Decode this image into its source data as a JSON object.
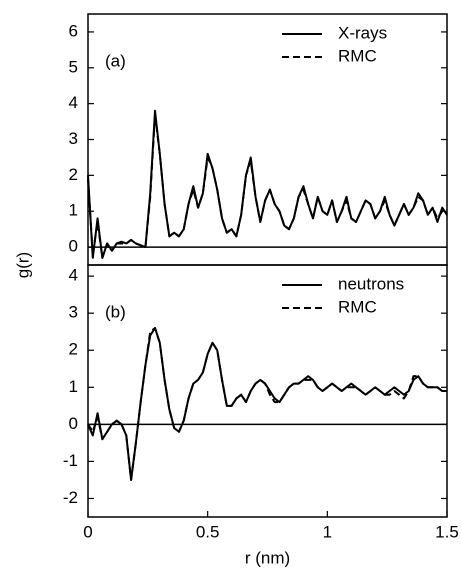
{
  "chart_data": [
    {
      "type": "line",
      "label": "(a)",
      "ylabel": "g(r)",
      "legend": "upper right",
      "xlim": [
        0,
        1.5
      ],
      "ylim": [
        -0.5,
        6.5
      ],
      "yticks": [
        0,
        1,
        2,
        3,
        4,
        5,
        6
      ],
      "zero_line": true,
      "x": [
        0,
        0.02,
        0.04,
        0.06,
        0.08,
        0.1,
        0.12,
        0.14,
        0.16,
        0.18,
        0.2,
        0.22,
        0.24,
        0.26,
        0.28,
        0.3,
        0.32,
        0.34,
        0.36,
        0.38,
        0.4,
        0.42,
        0.44,
        0.46,
        0.48,
        0.5,
        0.52,
        0.54,
        0.56,
        0.58,
        0.6,
        0.62,
        0.64,
        0.66,
        0.68,
        0.7,
        0.72,
        0.74,
        0.76,
        0.78,
        0.8,
        0.82,
        0.84,
        0.86,
        0.88,
        0.9,
        0.92,
        0.94,
        0.96,
        0.98,
        1,
        1.02,
        1.04,
        1.06,
        1.08,
        1.1,
        1.12,
        1.14,
        1.16,
        1.18,
        1.2,
        1.22,
        1.24,
        1.26,
        1.28,
        1.3,
        1.32,
        1.34,
        1.36,
        1.38,
        1.4,
        1.42,
        1.44,
        1.46,
        1.48,
        1.5
      ],
      "series": [
        {
          "name": "X-rays",
          "color": "#000000",
          "linestyle": "solid",
          "values": [
            2.0,
            -0.3,
            0.8,
            -0.3,
            0.1,
            -0.1,
            0.1,
            0.15,
            0.1,
            0.2,
            0.1,
            0.05,
            0.0,
            1.5,
            3.8,
            2.6,
            1.2,
            0.3,
            0.4,
            0.3,
            0.5,
            1.2,
            1.7,
            1.1,
            1.5,
            2.6,
            2.2,
            1.6,
            0.8,
            0.4,
            0.5,
            0.3,
            0.9,
            2.0,
            2.5,
            1.4,
            0.7,
            1.3,
            1.6,
            1.2,
            1.0,
            0.6,
            0.5,
            0.8,
            1.4,
            1.7,
            1.2,
            0.8,
            1.4,
            1.0,
            0.9,
            1.3,
            0.7,
            1.0,
            1.4,
            0.8,
            0.7,
            1.0,
            1.3,
            1.2,
            0.8,
            1.0,
            1.4,
            0.9,
            0.6,
            0.9,
            1.2,
            0.9,
            1.1,
            1.5,
            1.3,
            0.9,
            1.1,
            0.7,
            1.1,
            0.9
          ]
        },
        {
          "name": "RMC",
          "color": "#000000",
          "linestyle": "dashed",
          "values": [
            1.9,
            -0.2,
            0.7,
            -0.3,
            0.1,
            -0.1,
            0.1,
            0.1,
            0.1,
            0.2,
            0.1,
            0.05,
            0.0,
            1.4,
            3.7,
            2.6,
            1.2,
            0.3,
            0.4,
            0.3,
            0.5,
            1.2,
            1.6,
            1.1,
            1.5,
            2.5,
            2.2,
            1.6,
            0.8,
            0.4,
            0.5,
            0.3,
            0.9,
            2.0,
            2.4,
            1.4,
            0.7,
            1.3,
            1.6,
            1.2,
            1.0,
            0.6,
            0.5,
            0.8,
            1.4,
            1.6,
            1.2,
            0.8,
            1.4,
            1.0,
            0.9,
            1.3,
            0.7,
            1.0,
            1.3,
            0.8,
            0.7,
            1.0,
            1.3,
            1.2,
            0.8,
            1.0,
            1.3,
            0.9,
            0.6,
            0.9,
            1.2,
            0.9,
            1.1,
            1.4,
            1.3,
            0.9,
            1.1,
            0.8,
            1.0,
            0.9
          ]
        }
      ]
    },
    {
      "type": "line",
      "label": "(b)",
      "xlabel": "r (nm)",
      "legend": "upper right",
      "xlim": [
        0,
        1.5
      ],
      "xticks": [
        0,
        0.5,
        1,
        1.5
      ],
      "ylim": [
        -2.5,
        4.3
      ],
      "yticks": [
        -2,
        -1,
        0,
        1,
        2,
        3,
        4
      ],
      "zero_line": true,
      "x": [
        0,
        0.02,
        0.04,
        0.06,
        0.08,
        0.1,
        0.12,
        0.14,
        0.16,
        0.18,
        0.2,
        0.22,
        0.24,
        0.26,
        0.28,
        0.3,
        0.32,
        0.34,
        0.36,
        0.38,
        0.4,
        0.42,
        0.44,
        0.46,
        0.48,
        0.5,
        0.52,
        0.54,
        0.56,
        0.58,
        0.6,
        0.62,
        0.64,
        0.66,
        0.68,
        0.7,
        0.72,
        0.74,
        0.76,
        0.78,
        0.8,
        0.82,
        0.84,
        0.86,
        0.88,
        0.9,
        0.92,
        0.94,
        0.96,
        0.98,
        1,
        1.02,
        1.04,
        1.06,
        1.08,
        1.1,
        1.12,
        1.14,
        1.16,
        1.18,
        1.2,
        1.22,
        1.24,
        1.26,
        1.28,
        1.3,
        1.32,
        1.34,
        1.36,
        1.38,
        1.4,
        1.42,
        1.44,
        1.46,
        1.48,
        1.5
      ],
      "series": [
        {
          "name": "neutrons",
          "color": "#000000",
          "linestyle": "solid",
          "values": [
            0.0,
            -0.3,
            0.3,
            -0.4,
            -0.2,
            0.0,
            0.1,
            0.0,
            -0.3,
            -1.5,
            -0.5,
            0.6,
            1.6,
            2.4,
            2.6,
            2.2,
            1.2,
            0.4,
            -0.1,
            -0.2,
            0.1,
            0.7,
            1.1,
            1.2,
            1.4,
            1.9,
            2.2,
            2.0,
            1.2,
            0.5,
            0.5,
            0.7,
            0.8,
            0.6,
            0.9,
            1.1,
            1.2,
            1.1,
            0.9,
            0.7,
            0.6,
            0.8,
            1.0,
            1.1,
            1.1,
            1.2,
            1.3,
            1.2,
            1.0,
            0.9,
            1.0,
            1.1,
            1.0,
            0.9,
            1.0,
            1.1,
            1.0,
            0.9,
            0.8,
            0.9,
            1.0,
            0.9,
            0.8,
            0.9,
            1.0,
            0.9,
            0.8,
            0.9,
            1.2,
            1.3,
            1.1,
            1.0,
            1.0,
            1.0,
            0.9,
            0.9
          ]
        },
        {
          "name": "RMC",
          "color": "#000000",
          "linestyle": "dashed",
          "values": [
            0.0,
            -0.2,
            0.2,
            -0.4,
            -0.2,
            0.0,
            0.1,
            0.0,
            -0.3,
            -1.5,
            -0.5,
            0.6,
            1.6,
            2.5,
            2.6,
            2.2,
            1.2,
            0.4,
            -0.1,
            -0.2,
            0.1,
            0.7,
            1.1,
            1.2,
            1.4,
            1.9,
            2.2,
            2.0,
            1.2,
            0.5,
            0.5,
            0.7,
            0.8,
            0.6,
            0.9,
            1.1,
            1.2,
            1.1,
            0.8,
            0.6,
            0.6,
            0.8,
            1.0,
            1.1,
            1.1,
            1.2,
            1.2,
            1.2,
            1.0,
            0.9,
            1.0,
            1.1,
            1.0,
            0.9,
            1.0,
            1.0,
            1.0,
            0.9,
            0.8,
            0.9,
            1.0,
            0.9,
            0.8,
            0.8,
            0.9,
            0.8,
            0.7,
            0.9,
            1.3,
            1.3,
            1.1,
            1.0,
            1.0,
            1.0,
            0.9,
            0.9
          ]
        }
      ]
    }
  ]
}
